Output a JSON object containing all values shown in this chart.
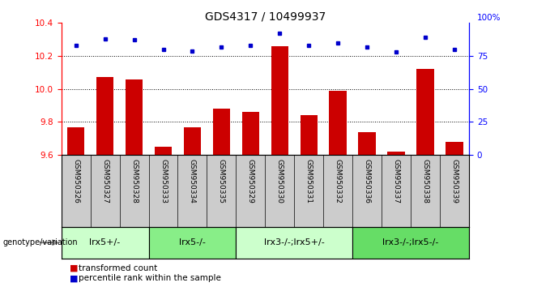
{
  "title": "GDS4317 / 10499937",
  "samples": [
    "GSM950326",
    "GSM950327",
    "GSM950328",
    "GSM950333",
    "GSM950334",
    "GSM950335",
    "GSM950329",
    "GSM950330",
    "GSM950331",
    "GSM950332",
    "GSM950336",
    "GSM950337",
    "GSM950338",
    "GSM950339"
  ],
  "bar_values": [
    9.77,
    10.07,
    10.06,
    9.65,
    9.77,
    9.88,
    9.86,
    10.26,
    9.84,
    9.99,
    9.74,
    9.62,
    10.12,
    9.68
  ],
  "dot_values": [
    83,
    88,
    87,
    80,
    79,
    82,
    83,
    92,
    83,
    85,
    82,
    78,
    89,
    80
  ],
  "ylim_left": [
    9.6,
    10.4
  ],
  "ylim_right": [
    0,
    100
  ],
  "yticks_left": [
    9.6,
    9.8,
    10.0,
    10.2,
    10.4
  ],
  "yticks_right": [
    0,
    25,
    50,
    75
  ],
  "bar_color": "#cc0000",
  "dot_color": "#0000cc",
  "bar_width": 0.6,
  "groups": [
    {
      "label": "lrx5+/-",
      "start": 0,
      "end": 3,
      "color": "#ccffcc"
    },
    {
      "label": "lrx5-/-",
      "start": 3,
      "end": 6,
      "color": "#88ee88"
    },
    {
      "label": "lrx3-/-;lrx5+/-",
      "start": 6,
      "end": 10,
      "color": "#ccffcc"
    },
    {
      "label": "lrx3-/-;lrx5-/-",
      "start": 10,
      "end": 14,
      "color": "#66dd66"
    }
  ],
  "group_row_color": "#cccccc",
  "legend_red_label": "transformed count",
  "legend_blue_label": "percentile rank within the sample",
  "background_color": "#ffffff",
  "plot_bg_color": "#ffffff",
  "title_fontsize": 10,
  "tick_fontsize": 7.5,
  "sample_fontsize": 6.5,
  "group_label_fontsize": 8
}
